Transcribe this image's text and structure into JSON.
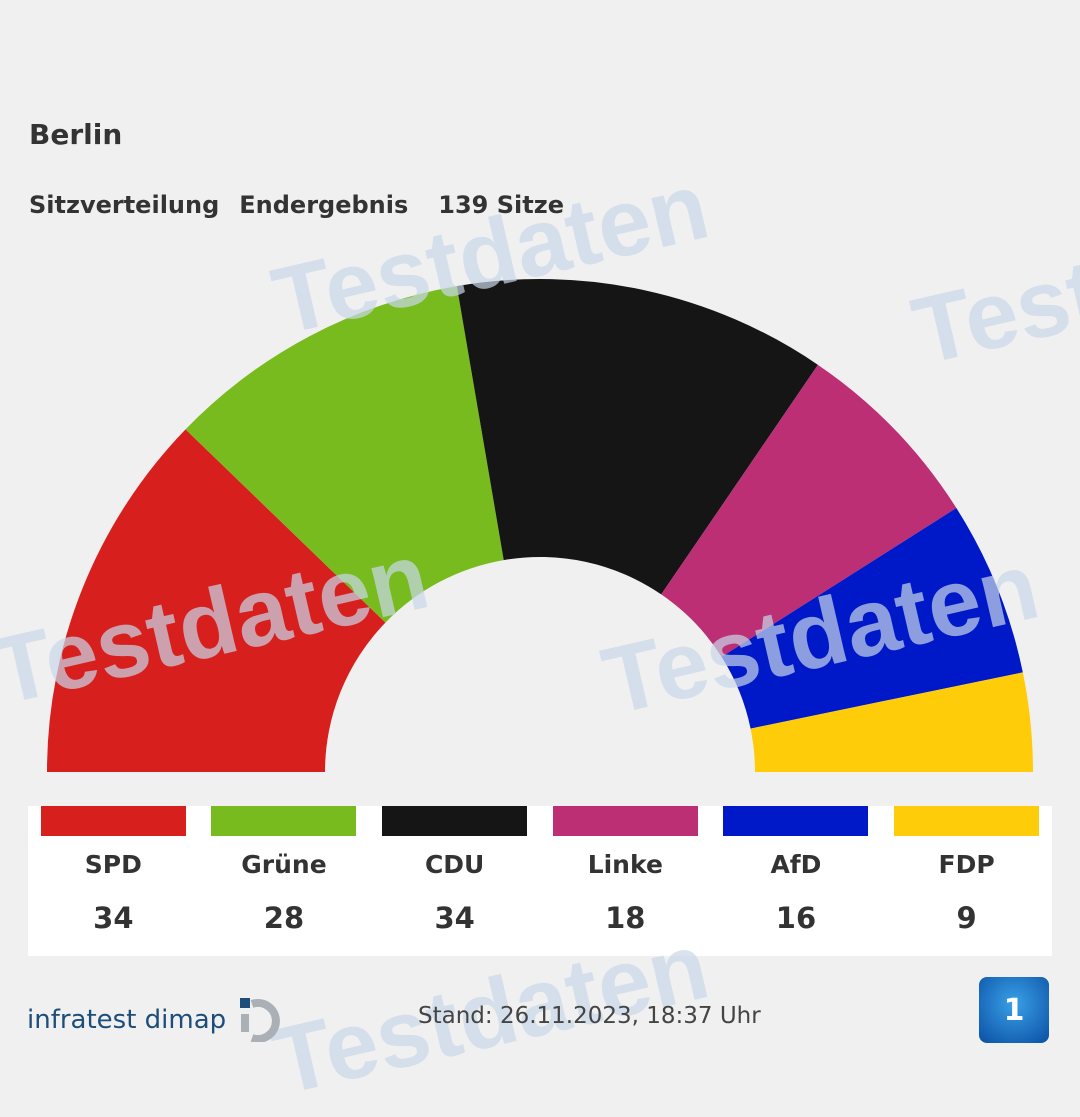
{
  "header": {
    "title": "Berlin",
    "subtitle_parts": [
      "Sitzverteilung",
      "Endergebnis",
      "139 Sitze"
    ]
  },
  "chart_data": {
    "type": "pie",
    "subtype": "semicircle-parliament",
    "title": "Berlin",
    "total_seats": 139,
    "categories": [
      "SPD",
      "Grüne",
      "CDU",
      "Linke",
      "AfD",
      "FDP"
    ],
    "values": [
      34,
      28,
      34,
      18,
      16,
      9
    ],
    "colors": [
      "#d7201e",
      "#78bb1e",
      "#151515",
      "#bc2f74",
      "#0019c8",
      "#ffcc0a"
    ],
    "legend_position": "bottom"
  },
  "watermark": "Testdaten",
  "footer": {
    "brand": "infratest dimap",
    "stand": "Stand: 26.11.2023, 18:37 Uhr",
    "ard_logo": "1"
  }
}
